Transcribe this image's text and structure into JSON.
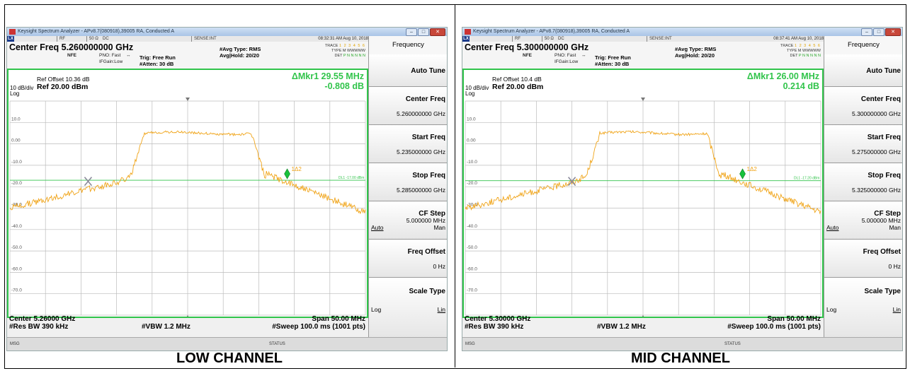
{
  "colors": {
    "trace": "#f0a418",
    "grid": "#bcbcbc",
    "display_line": "#31c44b",
    "marker": "#18c23c",
    "frame": "#31c44b"
  },
  "panels": [
    {
      "window_title": "Keysight Spectrum Analyzer - APv8.7(080918),39005 RA, Conducted A",
      "status": {
        "rf": "RF",
        "ohm": "50 Ω",
        "dc": "DC",
        "sense": "SENSE:INT"
      },
      "timestamp": "08:32:31 AM Aug 10, 2018",
      "center_freq_title": "Center Freq 5.260000000 GHz",
      "nfe": "NFE",
      "pno": "PNO: Fast",
      "ifgain": "IFGain:Low",
      "trig": "Trig: Free Run",
      "atten": "#Atten: 30 dB",
      "avg_type": "#Avg Type: RMS",
      "avg_hold": "Avg|Hold: 20/20",
      "trace_label": "TRACE",
      "trace_nums": "1 2 3 4 5 6",
      "type_label": "TYPE",
      "type_val": "M WWWWW",
      "det_label": "DET",
      "det_val": "P N N N N N",
      "ref_offset": "Ref Offset 10.36 dB",
      "ref_level": "Ref 20.00 dBm",
      "scale": "10 dB/div",
      "log": "Log",
      "marker_freq": "ΔMkr1 29.55 MHz",
      "marker_amp": "-0.808 dB",
      "y_ticks": [
        "10.0",
        "0.00",
        "-10.0",
        "-20.0",
        "-30.0",
        "-40.0",
        "-50.0",
        "-60.0",
        "-70.0"
      ],
      "dl_label": "DL1 -17.00 dBm",
      "marker_label": "1Δ2",
      "center_bottom": "Center 5.26000 GHz",
      "res_bw": "#Res BW 390 kHz",
      "vbw": "#VBW 1.2 MHz",
      "span": "Span 50.00 MHz",
      "sweep": "#Sweep  100.0 ms (1001 pts)",
      "msg": "MSG",
      "status_label": "STATUS",
      "menu": {
        "title": "Frequency",
        "auto_tune": "Auto Tune",
        "center_freq": "Center Freq",
        "center_val": "5.260000000 GHz",
        "start_freq": "Start Freq",
        "start_val": "5.235000000 GHz",
        "stop_freq": "Stop Freq",
        "stop_val": "5.285000000 GHz",
        "cf_step": "CF Step",
        "cf_val": "5.000000 MHz",
        "auto": "Auto",
        "man": "Man",
        "freq_offset": "Freq Offset",
        "freq_offset_val": "0 Hz",
        "scale_type": "Scale Type",
        "log": "Log",
        "lin": "Lin"
      },
      "caption": "LOW CHANNEL"
    },
    {
      "window_title": "Keysight Spectrum Analyzer - APv8.7(080918),39005 RA, Conducted A",
      "status": {
        "rf": "RF",
        "ohm": "50 Ω",
        "dc": "DC",
        "sense": "SENSE:INT"
      },
      "timestamp": "08:37:41 AM Aug 10, 2018",
      "center_freq_title": "Center Freq 5.300000000 GHz",
      "nfe": "NFE",
      "pno": "PNO: Fast",
      "ifgain": "IFGain:Low",
      "trig": "Trig: Free Run",
      "atten": "#Atten: 30 dB",
      "avg_type": "#Avg Type: RMS",
      "avg_hold": "Avg|Hold: 20/20",
      "trace_label": "TRACE",
      "trace_nums": "1 2 3 4 5 6",
      "type_label": "TYPE",
      "type_val": "M WWWWW",
      "det_label": "DET",
      "det_val": "P N N N N N",
      "ref_offset": "Ref Offset 10.4 dB",
      "ref_level": "Ref 20.00 dBm",
      "scale": "10 dB/div",
      "log": "Log",
      "marker_freq": "ΔMkr1 26.00 MHz",
      "marker_amp": "0.214 dB",
      "y_ticks": [
        "10.0",
        "0.00",
        "-10.0",
        "-20.0",
        "-30.0",
        "-40.0",
        "-50.0",
        "-60.0",
        "-70.0"
      ],
      "dl_label": "DL1 -17.20 dBm",
      "marker_label": "1Δ2",
      "center_bottom": "Center 5.30000 GHz",
      "res_bw": "#Res BW 390 kHz",
      "vbw": "#VBW 1.2 MHz",
      "span": "Span 50.00 MHz",
      "sweep": "#Sweep  100.0 ms (1001 pts)",
      "msg": "MSG",
      "status_label": "STATUS",
      "menu": {
        "title": "Frequency",
        "auto_tune": "Auto Tune",
        "center_freq": "Center Freq",
        "center_val": "5.300000000 GHz",
        "start_freq": "Start Freq",
        "start_val": "5.275000000 GHz",
        "stop_freq": "Stop Freq",
        "stop_val": "5.325000000 GHz",
        "cf_step": "CF Step",
        "cf_val": "5.000000 MHz",
        "auto": "Auto",
        "man": "Man",
        "freq_offset": "Freq Offset",
        "freq_offset_val": "0 Hz",
        "scale_type": "Scale Type",
        "log": "Log",
        "lin": "Lin"
      },
      "caption": "MID CHANNEL"
    }
  ]
}
